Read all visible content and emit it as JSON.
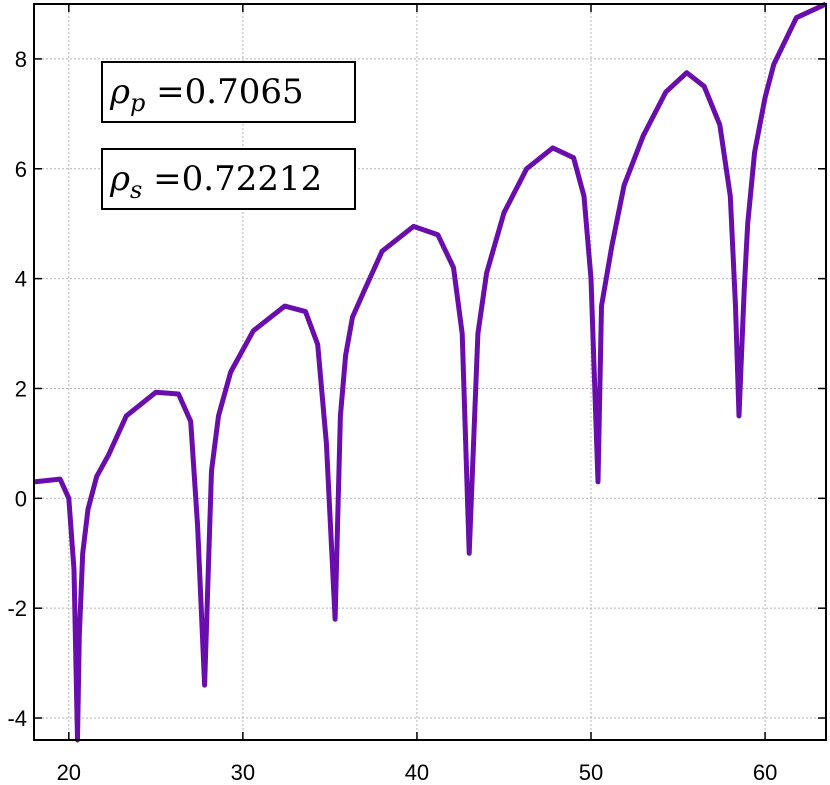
{
  "chart_data": {
    "type": "line",
    "title": "",
    "xlabel": "",
    "ylabel": "",
    "xlim": [
      18,
      63.5
    ],
    "ylim": [
      -4.4,
      9
    ],
    "grid": true,
    "line_color": "#6a0dad",
    "xticks": [
      20,
      30,
      40,
      50,
      60
    ],
    "yticks": [
      -4,
      -2,
      0,
      2,
      4,
      6,
      8
    ],
    "annotations": [
      {
        "symbol": "ρ",
        "subscript": "p",
        "text": " =0.7065"
      },
      {
        "symbol": "ρ",
        "subscript": "s",
        "text": " =0.72212"
      }
    ],
    "series": [
      {
        "x": [
          18.0,
          19.5,
          20.0,
          20.3,
          20.5,
          20.6,
          20.8,
          21.1,
          21.6,
          22.3,
          23.3,
          25.0,
          26.3,
          27.0,
          27.4,
          27.8,
          28.2,
          28.6,
          29.3,
          30.6,
          32.4,
          33.6,
          34.3,
          34.8,
          35.3,
          35.6,
          35.9,
          36.3,
          37.0,
          38.0,
          39.8,
          41.2,
          42.1,
          42.6,
          43.0,
          43.5,
          44.0,
          45.0,
          46.3,
          47.8,
          49.0,
          49.6,
          50.0,
          50.4,
          50.6,
          51.2,
          51.9,
          53.0,
          54.3,
          55.5,
          56.5,
          57.4,
          58.0,
          58.3,
          58.5,
          58.8,
          59.0,
          59.4,
          60.0,
          60.5,
          61.8,
          63.5
        ],
        "y": [
          0.3,
          0.35,
          0.0,
          -1.3,
          -4.4,
          -2.5,
          -1.0,
          -0.2,
          0.4,
          0.8,
          1.5,
          1.93,
          1.9,
          1.4,
          -0.5,
          -3.4,
          0.5,
          1.5,
          2.3,
          3.05,
          3.5,
          3.4,
          2.8,
          1.0,
          -2.2,
          1.5,
          2.6,
          3.3,
          3.8,
          4.5,
          4.95,
          4.8,
          4.2,
          3.0,
          -1.0,
          3.0,
          4.1,
          5.2,
          6.0,
          6.38,
          6.2,
          5.5,
          4.0,
          0.3,
          3.5,
          4.6,
          5.7,
          6.6,
          7.4,
          7.75,
          7.5,
          6.8,
          5.5,
          3.5,
          1.5,
          3.8,
          5.0,
          6.3,
          7.3,
          7.9,
          8.75,
          9.0
        ]
      }
    ]
  }
}
